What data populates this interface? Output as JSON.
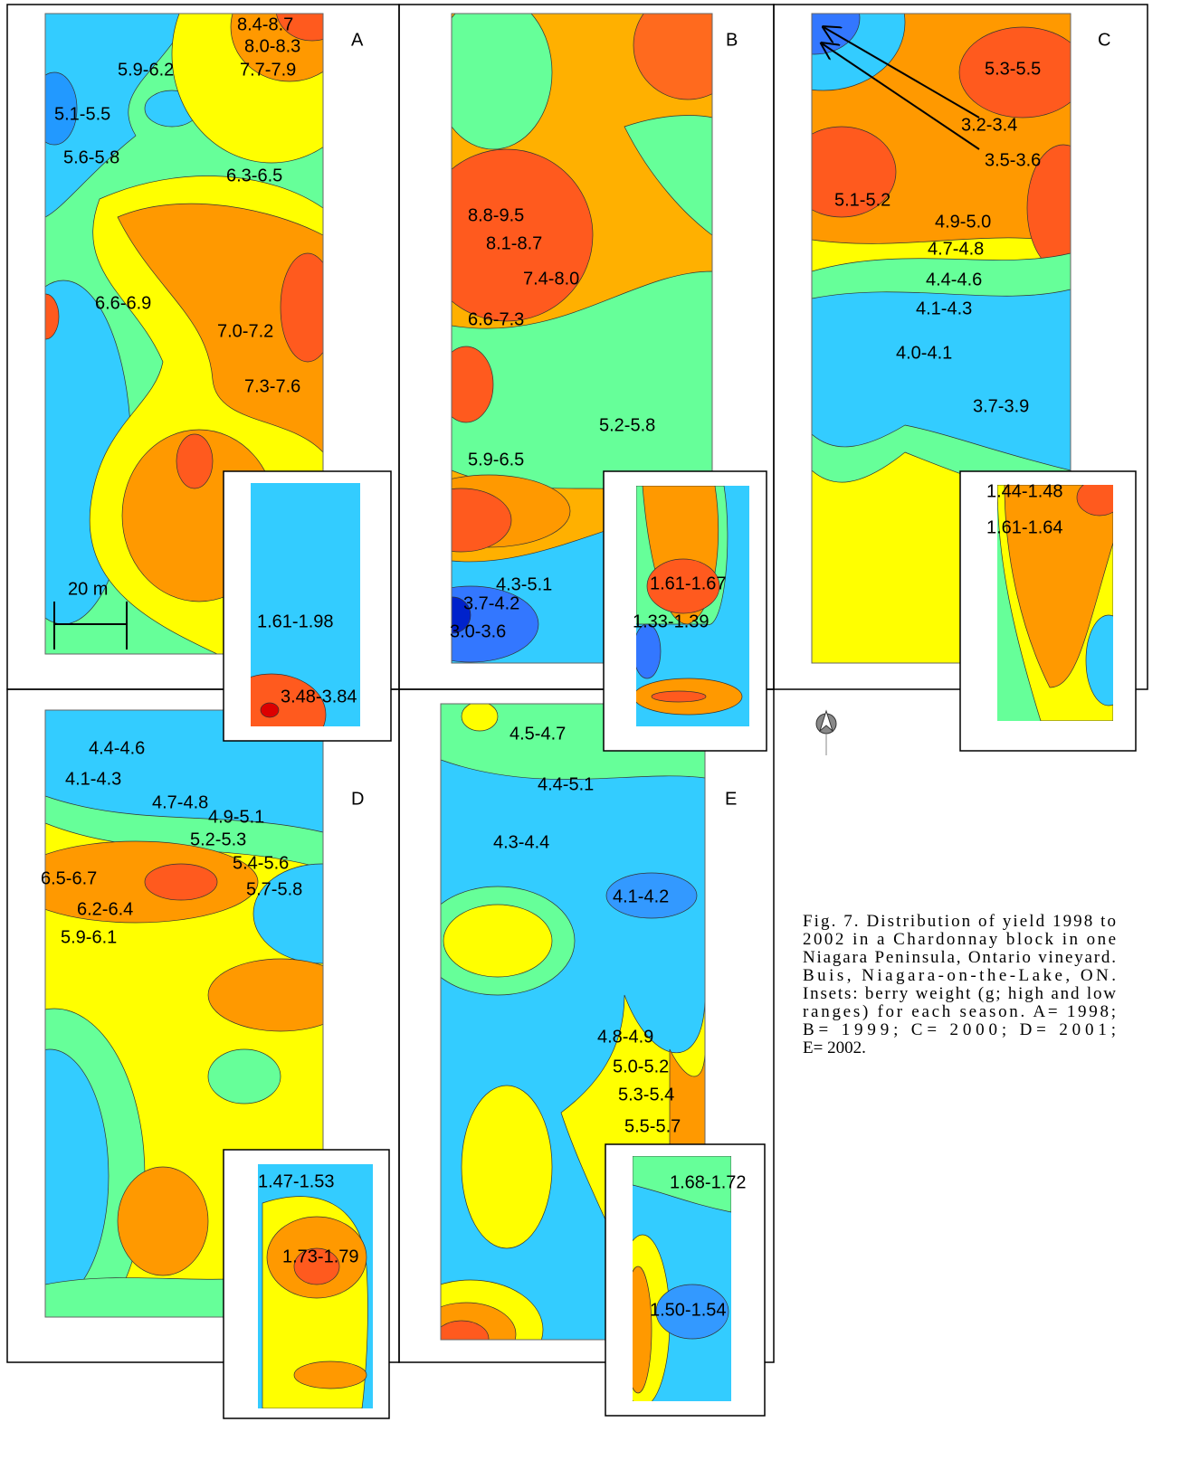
{
  "panels": [
    {
      "letter": "A",
      "contours": [
        "8.4-8.7",
        "8.0-8.3",
        "7.7-7.9",
        "5.9-6.2",
        "5.1-5.5",
        "5.6-5.8",
        "6.3-6.5",
        "6.6-6.9",
        "7.0-7.2",
        "7.3-7.6"
      ],
      "inset": [
        "1.61-1.98",
        "3.48-3.84"
      ]
    },
    {
      "letter": "B",
      "contours": [
        "8.8-9.5",
        "8.1-8.7",
        "7.4-8.0",
        "6.6-7.3",
        "5.2-5.8",
        "5.9-6.5",
        "4.3-5.1",
        "3.7-4.2",
        "3.0-3.6"
      ],
      "inset": [
        "1.61-1.67",
        "1.33-1.39"
      ]
    },
    {
      "letter": "C",
      "contours": [
        "5.3-5.5",
        "3.2-3.4",
        "3.5-3.6",
        "5.1-5.2",
        "4.9-5.0",
        "4.7-4.8",
        "4.4-4.6",
        "4.1-4.3",
        "4.0-4.1",
        "3.7-3.9"
      ],
      "inset": [
        "1.44-1.48",
        "1.61-1.64"
      ]
    },
    {
      "letter": "D",
      "contours": [
        "4.4-4.6",
        "4.1-4.3",
        "4.7-4.8",
        "4.9-5.1",
        "5.2-5.3",
        "5.4-5.6",
        "6.5-6.7",
        "5.7-5.8",
        "6.2-6.4",
        "5.9-6.1"
      ],
      "inset": [
        "1.47-1.53",
        "1.73-1.79"
      ]
    },
    {
      "letter": "E",
      "contours": [
        "4.5-4.7",
        "4.4-5.1",
        "4.3-4.4",
        "4.1-4.2",
        "4.8-4.9",
        "5.0-5.2",
        "5.3-5.4",
        "5.5-5.7"
      ],
      "inset": [
        "1.68-1.72",
        "1.50-1.54"
      ]
    }
  ],
  "scale_bar": "20 m",
  "caption": [
    "Fig. 7.  Distribution of yield 1998 to",
    "2002 in a Chardonnay block in one",
    "Niagara Peninsula, Ontario vineyard.",
    "Buis, Niagara-on-the-Lake, ON.",
    "Insets: berry weight (g; high and low",
    "ranges) for each season.  A= 1998;",
    "B= 1999; C= 2000; D= 2001;",
    "E= 2002."
  ]
}
